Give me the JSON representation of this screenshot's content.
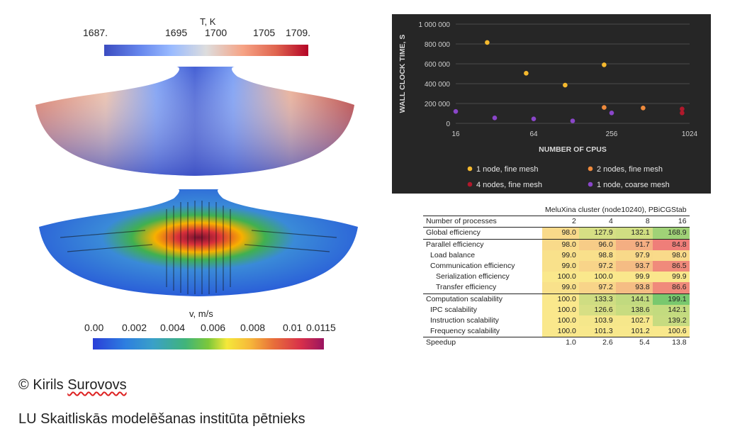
{
  "temperature_plot": {
    "title": "T, K",
    "ticks": [
      "1687.",
      "1695",
      "1700",
      "1705",
      "1709."
    ]
  },
  "velocity_plot": {
    "title": "v, m/s",
    "ticks": [
      "0.00",
      "0.002",
      "0.004",
      "0.006",
      "0.008",
      "0.01",
      "0.0115"
    ]
  },
  "chart_data": {
    "type": "scatter",
    "ylabel": "WALL CLOCK TIME, S",
    "xlabel": "NUMBER OF CPUS",
    "x_scale": "log2",
    "x_ticks": [
      "16",
      "64",
      "256",
      "1024"
    ],
    "xlim": [
      16,
      1024
    ],
    "y_ticks": [
      "0",
      "200 000",
      "400 000",
      "600 000",
      "800 000",
      "1 000 000"
    ],
    "ylim": [
      0,
      1000000
    ],
    "legend_position": "bottom",
    "series": [
      {
        "name": "1 node, fine mesh",
        "color": "#f5b92e",
        "x": [
          28,
          56,
          112,
          224
        ],
        "y": [
          815000,
          505000,
          385000,
          590000
        ]
      },
      {
        "name": "2 nodes, fine mesh",
        "color": "#ef8a3c",
        "x": [
          224,
          448
        ],
        "y": [
          160000,
          155000
        ]
      },
      {
        "name": "4 nodes, fine mesh",
        "color": "#b0182b",
        "x": [
          896,
          896
        ],
        "y": [
          145000,
          105000
        ]
      },
      {
        "name": "1 node, coarse mesh",
        "color": "#8a46c9",
        "x": [
          16,
          32,
          64,
          128,
          256
        ],
        "y": [
          120000,
          55000,
          45000,
          25000,
          105000
        ]
      }
    ]
  },
  "efficiency_table": {
    "caption": "MeluXina cluster (node10240), PBiCGStab",
    "header": {
      "label": "Number of processes",
      "values": [
        "2",
        "4",
        "8",
        "16"
      ]
    },
    "rows": [
      {
        "label": "Global efficiency",
        "values": [
          "98.0",
          "127.9",
          "132.1",
          "168.9"
        ],
        "indent": 0,
        "sep": true
      },
      {
        "label": "Parallel efficiency",
        "values": [
          "98.0",
          "96.0",
          "91.7",
          "84.8"
        ],
        "indent": 0,
        "sep": true
      },
      {
        "label": "Load balance",
        "values": [
          "99.0",
          "98.8",
          "97.9",
          "98.0"
        ],
        "indent": 1,
        "sep": false
      },
      {
        "label": "Communication efficiency",
        "values": [
          "99.0",
          "97.2",
          "93.7",
          "86.5"
        ],
        "indent": 1,
        "sep": false
      },
      {
        "label": "Serialization efficiency",
        "values": [
          "100.0",
          "100.0",
          "99.9",
          "99.9"
        ],
        "indent": 2,
        "sep": false
      },
      {
        "label": "Transfer efficiency",
        "values": [
          "99.0",
          "97.2",
          "93.8",
          "86.6"
        ],
        "indent": 2,
        "sep": false
      },
      {
        "label": "Computation scalability",
        "values": [
          "100.0",
          "133.3",
          "144.1",
          "199.1"
        ],
        "indent": 0,
        "sep": true
      },
      {
        "label": "IPC scalability",
        "values": [
          "100.0",
          "126.6",
          "138.6",
          "142.1"
        ],
        "indent": 1,
        "sep": false
      },
      {
        "label": "Instruction scalability",
        "values": [
          "100.0",
          "103.9",
          "102.7",
          "139.2"
        ],
        "indent": 1,
        "sep": false
      },
      {
        "label": "Frequency scalability",
        "values": [
          "100.0",
          "101.3",
          "101.2",
          "100.6"
        ],
        "indent": 1,
        "sep": false
      },
      {
        "label": "Speedup",
        "values": [
          "1.0",
          "2.6",
          "5.4",
          "13.8"
        ],
        "indent": 0,
        "sep": true,
        "plain": true
      }
    ]
  },
  "footer": {
    "copyright_symbol": "©",
    "author_first": "Kirils",
    "author_last": "Surovovs",
    "affiliation": "LU Skaitliskās modelēšanas institūta pētnieks"
  }
}
